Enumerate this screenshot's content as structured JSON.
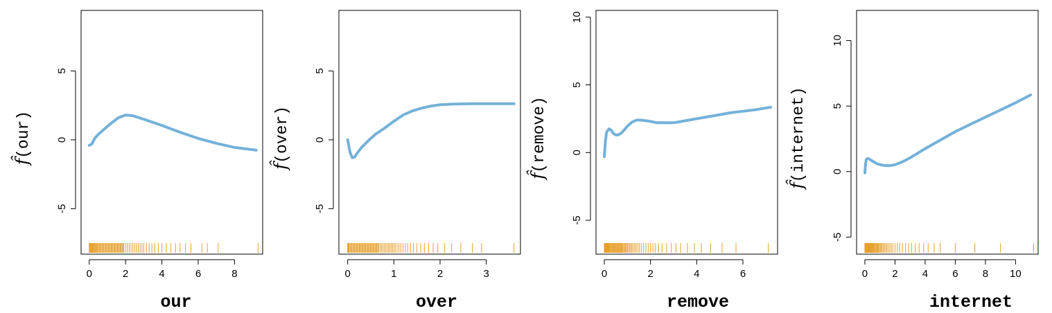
{
  "chart_data": [
    {
      "type": "line",
      "xlabel": "our",
      "ylabel": "f̂(our)",
      "ylabel_fn": "f̂",
      "ylabel_arg": "(our)",
      "xlim": [
        -0.45,
        9.55
      ],
      "ylim": [
        -8.3,
        9.4
      ],
      "xticks": [
        0,
        2,
        4,
        6,
        8
      ],
      "yticks": [
        -5,
        0,
        5
      ],
      "series": [
        {
          "x": [
            0.0,
            0.15,
            0.3,
            0.5,
            0.8,
            1.2,
            1.6,
            2.0,
            2.4,
            3.0,
            4.0,
            5.0,
            6.0,
            7.0,
            8.0,
            9.2
          ],
          "y": [
            -0.4,
            -0.3,
            0.1,
            0.4,
            0.75,
            1.2,
            1.6,
            1.8,
            1.75,
            1.5,
            1.05,
            0.55,
            0.1,
            -0.25,
            -0.55,
            -0.75
          ]
        }
      ],
      "rug": [
        0.0,
        0.02,
        0.05,
        0.08,
        0.1,
        0.14,
        0.18,
        0.22,
        0.26,
        0.3,
        0.34,
        0.38,
        0.42,
        0.46,
        0.5,
        0.55,
        0.6,
        0.65,
        0.7,
        0.75,
        0.8,
        0.85,
        0.9,
        0.95,
        1.0,
        1.05,
        1.1,
        1.15,
        1.2,
        1.25,
        1.3,
        1.35,
        1.4,
        1.45,
        1.5,
        1.55,
        1.6,
        1.65,
        1.7,
        1.75,
        1.8,
        1.85,
        1.9,
        2.0,
        2.1,
        2.2,
        2.3,
        2.4,
        2.5,
        2.6,
        2.7,
        2.8,
        2.9,
        3.0,
        3.15,
        3.3,
        3.45,
        3.6,
        3.8,
        4.0,
        4.25,
        4.5,
        4.75,
        5.0,
        5.3,
        5.6,
        6.2,
        6.5,
        7.1,
        9.3
      ]
    },
    {
      "type": "line",
      "xlabel": "over",
      "ylabel": "f̂(over)",
      "ylabel_fn": "f̂",
      "ylabel_arg": "(over)",
      "xlim": [
        -0.19,
        3.74
      ],
      "ylim": [
        -8.3,
        9.4
      ],
      "xticks": [
        0,
        1,
        2,
        3
      ],
      "yticks": [
        -5,
        0,
        5
      ],
      "series": [
        {
          "x": [
            0.0,
            0.05,
            0.1,
            0.15,
            0.2,
            0.3,
            0.45,
            0.6,
            0.8,
            1.0,
            1.2,
            1.4,
            1.6,
            1.8,
            2.0,
            2.3,
            2.7,
            3.2,
            3.6
          ],
          "y": [
            0.0,
            -0.9,
            -1.3,
            -1.25,
            -1.0,
            -0.55,
            -0.05,
            0.4,
            0.85,
            1.35,
            1.8,
            2.1,
            2.3,
            2.45,
            2.55,
            2.6,
            2.62,
            2.62,
            2.62
          ]
        }
      ],
      "rug": [
        0.0,
        0.01,
        0.02,
        0.03,
        0.05,
        0.07,
        0.09,
        0.11,
        0.13,
        0.15,
        0.17,
        0.19,
        0.21,
        0.23,
        0.25,
        0.27,
        0.29,
        0.31,
        0.33,
        0.35,
        0.37,
        0.39,
        0.41,
        0.43,
        0.45,
        0.47,
        0.49,
        0.51,
        0.53,
        0.55,
        0.57,
        0.59,
        0.61,
        0.63,
        0.65,
        0.67,
        0.7,
        0.73,
        0.76,
        0.79,
        0.82,
        0.85,
        0.88,
        0.91,
        0.94,
        0.97,
        1.0,
        1.03,
        1.07,
        1.11,
        1.15,
        1.2,
        1.25,
        1.3,
        1.36,
        1.42,
        1.5,
        1.58,
        1.66,
        1.75,
        1.85,
        1.95,
        2.1,
        2.25,
        2.45,
        2.7,
        2.9,
        3.6
      ]
    },
    {
      "type": "line",
      "xlabel": "remove",
      "ylabel": "f̂(remove)",
      "ylabel_fn": "f̂",
      "ylabel_arg": "(remove)",
      "xlim": [
        -0.36,
        7.5
      ],
      "ylim": [
        -7.5,
        10.5
      ],
      "xticks": [
        0,
        2,
        4,
        6
      ],
      "yticks": [
        -5,
        0,
        5,
        10
      ],
      "series": [
        {
          "x": [
            0.0,
            0.05,
            0.1,
            0.2,
            0.3,
            0.4,
            0.5,
            0.6,
            0.7,
            0.8,
            1.0,
            1.2,
            1.4,
            1.6,
            1.8,
            2.0,
            2.3,
            2.6,
            3.0,
            3.5,
            4.0,
            4.5,
            5.0,
            5.5,
            6.0,
            6.5,
            7.2
          ],
          "y": [
            -0.3,
            0.9,
            1.5,
            1.75,
            1.65,
            1.4,
            1.3,
            1.3,
            1.4,
            1.55,
            1.95,
            2.25,
            2.4,
            2.4,
            2.35,
            2.3,
            2.2,
            2.2,
            2.2,
            2.35,
            2.5,
            2.65,
            2.8,
            2.95,
            3.05,
            3.15,
            3.35
          ]
        }
      ],
      "rug": [
        0.0,
        0.02,
        0.04,
        0.06,
        0.08,
        0.1,
        0.12,
        0.14,
        0.16,
        0.18,
        0.2,
        0.23,
        0.26,
        0.29,
        0.32,
        0.35,
        0.38,
        0.41,
        0.44,
        0.47,
        0.5,
        0.53,
        0.56,
        0.59,
        0.62,
        0.65,
        0.68,
        0.71,
        0.74,
        0.77,
        0.8,
        0.84,
        0.88,
        0.92,
        0.96,
        1.0,
        1.05,
        1.1,
        1.15,
        1.2,
        1.26,
        1.32,
        1.38,
        1.45,
        1.52,
        1.6,
        1.7,
        1.8,
        1.9,
        2.0,
        2.1,
        2.2,
        2.35,
        2.5,
        2.7,
        2.9,
        3.1,
        3.3,
        3.6,
        3.9,
        4.2,
        4.6,
        5.1,
        5.7,
        7.1
      ]
    },
    {
      "type": "line",
      "xlabel": "internet",
      "ylabel": "f̂(internet)",
      "ylabel_fn": "f̂",
      "ylabel_arg": "(internet)",
      "xlim": [
        -0.55,
        11.5
      ],
      "ylim": [
        -6.3,
        12.3
      ],
      "xticks": [
        0,
        2,
        4,
        6,
        8,
        10
      ],
      "yticks": [
        -5,
        0,
        5,
        10
      ],
      "series": [
        {
          "x": [
            0.0,
            0.05,
            0.1,
            0.2,
            0.3,
            0.5,
            0.8,
            1.2,
            1.6,
            2.0,
            2.5,
            3.0,
            4.0,
            5.0,
            6.0,
            7.0,
            8.0,
            9.0,
            10.0,
            11.0
          ],
          "y": [
            -0.1,
            0.6,
            0.95,
            1.0,
            0.95,
            0.8,
            0.6,
            0.48,
            0.45,
            0.52,
            0.75,
            1.05,
            1.75,
            2.4,
            3.05,
            3.6,
            4.15,
            4.7,
            5.25,
            5.85
          ]
        }
      ],
      "rug": [
        0.0,
        0.02,
        0.04,
        0.06,
        0.08,
        0.1,
        0.13,
        0.16,
        0.19,
        0.22,
        0.25,
        0.28,
        0.31,
        0.34,
        0.37,
        0.4,
        0.44,
        0.48,
        0.52,
        0.56,
        0.6,
        0.65,
        0.7,
        0.75,
        0.8,
        0.85,
        0.9,
        0.96,
        1.02,
        1.08,
        1.15,
        1.22,
        1.3,
        1.38,
        1.46,
        1.55,
        1.65,
        1.75,
        1.85,
        2.0,
        2.15,
        2.3,
        2.5,
        2.7,
        2.9,
        3.1,
        3.35,
        3.6,
        3.9,
        4.2,
        4.6,
        5.0,
        6.0,
        7.3,
        9.0,
        11.2
      ]
    }
  ],
  "colors": {
    "curve": "#74b1d8",
    "rug": "#e69f2b",
    "axis": "#000000"
  }
}
